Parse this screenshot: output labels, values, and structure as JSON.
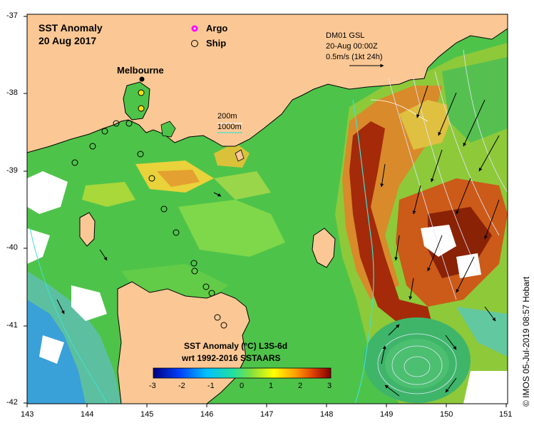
{
  "title": {
    "line1": "SST Anomaly",
    "line2": "20 Aug 2017"
  },
  "legend": {
    "argo": {
      "label": "Argo",
      "color": "#ff00ff",
      "icon": "argo-float-icon"
    },
    "ship": {
      "label": "Ship",
      "icon": "ship-circle-icon"
    }
  },
  "current_info": {
    "line1": "DM01 GSL",
    "line2": "20-Aug 00:00Z",
    "line3": "0.5m/s (1kt 24h)"
  },
  "place": {
    "melbourne": "Melbourne"
  },
  "contours": {
    "c200": "200m",
    "c1000": "1000m",
    "c1000_color": "#40e0d0"
  },
  "colorbar": {
    "title1": "SST Anomaly (°C) L3S-6d",
    "title2": "wrt 1992-2016 SSTAARS",
    "ticks": [
      "-3",
      "-2",
      "-1",
      "0",
      "1",
      "2",
      "3"
    ],
    "min": -3,
    "max": 3,
    "colors": [
      "#000080",
      "#0000ff",
      "#0080ff",
      "#00ffff",
      "#00ff80",
      "#80ff00",
      "#ffff00",
      "#ff8000",
      "#ff0000",
      "#800000"
    ]
  },
  "axes": {
    "lat_ticks": [
      "-37",
      "-38",
      "-39",
      "-40",
      "-41",
      "-42"
    ],
    "lon_ticks": [
      "143",
      "144",
      "145",
      "146",
      "147",
      "148",
      "149",
      "150",
      "151"
    ]
  },
  "credit": "© IMOS 05-Jul-2019 08:57 Hobart",
  "colors": {
    "land": "#fbc895",
    "sea_green": "#4ec34a",
    "warm": "#d98a2a",
    "hot": "#a42a0a",
    "frame": "#000000"
  }
}
